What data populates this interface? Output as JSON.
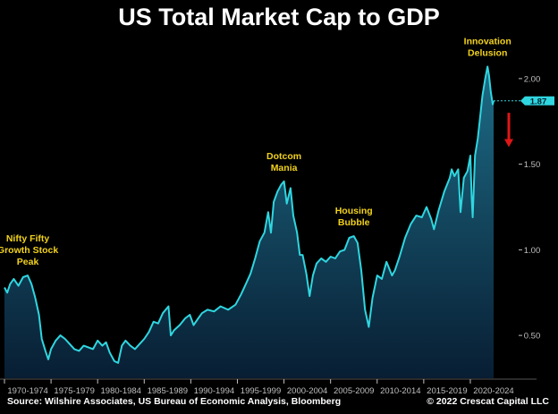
{
  "page": {
    "title": "US Total Market Cap to GDP",
    "source": "Source: Wilshire Associates, US Bureau of Economic Analysis, Bloomberg",
    "copyright": "© 2022 Crescat Capital LLC"
  },
  "colors": {
    "background": "#000000",
    "line": "#2fd6e0",
    "fill_top": "#1d6c86",
    "fill_bottom": "#081e33",
    "annotation": "#f2d21c",
    "arrow": "#e01616",
    "tick": "#bfbfbf",
    "badge": "#2fd6e0"
  },
  "chart_data": {
    "type": "area",
    "title": "US Total Market Cap to GDP",
    "xlabel": "",
    "ylabel": "",
    "xlim": [
      1970,
      2022.5
    ],
    "ylim": [
      0.25,
      2.25
    ],
    "yticks": [
      0.5,
      1.0,
      1.5,
      2.0
    ],
    "ytick_labels": [
      "0.50",
      "1.00",
      "1.50",
      "2.00"
    ],
    "x_categories": [
      "1970-1974",
      "1975-1979",
      "1980-1984",
      "1985-1989",
      "1990-1994",
      "1995-1999",
      "2000-2004",
      "2005-2009",
      "2010-2014",
      "2015-2019",
      "2020-2024"
    ],
    "last_value": 1.87,
    "last_value_label": "1.87",
    "grid": false,
    "series": [
      {
        "x": [
          1970.0,
          1970.3,
          1970.6,
          1971.0,
          1971.5,
          1972.0,
          1972.5,
          1972.9,
          1973.3,
          1973.7,
          1974.0,
          1974.4,
          1974.7,
          1975.0,
          1975.5,
          1976.0,
          1976.5,
          1977.0,
          1977.5,
          1978.0,
          1978.5,
          1979.0,
          1979.5,
          1980.0,
          1980.5,
          1980.9,
          1981.3,
          1981.8,
          1982.2,
          1982.6,
          1983.0,
          1983.5,
          1984.0,
          1984.5,
          1985.0,
          1985.5,
          1986.0,
          1986.5,
          1987.0,
          1987.6,
          1987.85,
          1988.2,
          1988.8,
          1989.4,
          1989.9,
          1990.3,
          1990.8,
          1991.2,
          1991.8,
          1992.5,
          1993.2,
          1994.0,
          1994.8,
          1995.4,
          1995.9,
          1996.4,
          1996.9,
          1997.4,
          1997.9,
          1998.3,
          1998.6,
          1998.9,
          1999.3,
          1999.7,
          2000.0,
          2000.3,
          2000.7,
          2001.0,
          2001.4,
          2001.7,
          2002.0,
          2002.4,
          2002.75,
          2003.1,
          2003.5,
          2004.0,
          2004.5,
          2005.0,
          2005.5,
          2006.0,
          2006.5,
          2007.0,
          2007.5,
          2007.9,
          2008.3,
          2008.7,
          2009.1,
          2009.5,
          2010.0,
          2010.5,
          2011.0,
          2011.6,
          2011.9,
          2012.4,
          2013.0,
          2013.6,
          2014.2,
          2014.8,
          2015.3,
          2015.8,
          2016.1,
          2016.6,
          2017.2,
          2017.8,
          2018.0,
          2018.3,
          2018.7,
          2018.95,
          2019.3,
          2019.7,
          2020.0,
          2020.15,
          2020.25,
          2020.5,
          2020.8,
          2021.0,
          2021.3,
          2021.6,
          2021.85,
          2022.0,
          2022.2,
          2022.4,
          2022.5
        ],
        "y": [
          0.78,
          0.75,
          0.8,
          0.83,
          0.79,
          0.84,
          0.85,
          0.8,
          0.72,
          0.62,
          0.48,
          0.41,
          0.36,
          0.42,
          0.47,
          0.5,
          0.48,
          0.45,
          0.42,
          0.41,
          0.44,
          0.43,
          0.42,
          0.47,
          0.44,
          0.46,
          0.4,
          0.35,
          0.34,
          0.44,
          0.47,
          0.44,
          0.42,
          0.45,
          0.48,
          0.52,
          0.58,
          0.57,
          0.63,
          0.67,
          0.5,
          0.53,
          0.56,
          0.6,
          0.62,
          0.56,
          0.6,
          0.63,
          0.65,
          0.64,
          0.67,
          0.65,
          0.68,
          0.74,
          0.8,
          0.86,
          0.95,
          1.05,
          1.1,
          1.22,
          1.1,
          1.28,
          1.34,
          1.38,
          1.4,
          1.27,
          1.36,
          1.2,
          1.1,
          0.97,
          0.97,
          0.86,
          0.73,
          0.85,
          0.92,
          0.95,
          0.93,
          0.96,
          0.95,
          0.99,
          1.0,
          1.07,
          1.08,
          1.04,
          0.88,
          0.65,
          0.55,
          0.72,
          0.85,
          0.83,
          0.93,
          0.85,
          0.88,
          0.96,
          1.07,
          1.15,
          1.2,
          1.19,
          1.25,
          1.18,
          1.12,
          1.23,
          1.34,
          1.42,
          1.47,
          1.43,
          1.47,
          1.22,
          1.42,
          1.46,
          1.55,
          1.3,
          1.19,
          1.55,
          1.65,
          1.75,
          1.9,
          2.0,
          2.07,
          2.02,
          1.92,
          1.85,
          1.87
        ]
      }
    ],
    "annotations": [
      {
        "text": [
          "Nifty Fifty",
          "Growth Stock",
          "Peak"
        ],
        "x": 1972.5,
        "y": 0.85
      },
      {
        "text": [
          "Dotcom",
          "Mania"
        ],
        "x": 2000.0,
        "y": 1.4
      },
      {
        "text": [
          "Housing",
          "Bubble"
        ],
        "x": 2007.5,
        "y": 1.08
      },
      {
        "text": [
          "Innovation",
          "Delusion"
        ],
        "x": 2021.85,
        "y": 2.07
      }
    ]
  }
}
